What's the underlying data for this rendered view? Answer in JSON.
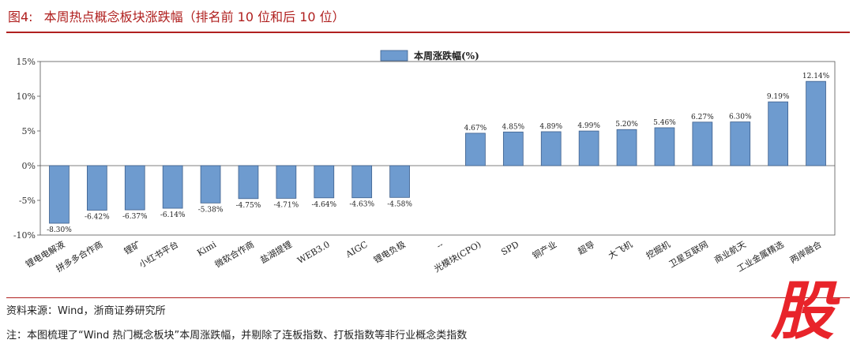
{
  "figure": {
    "number": "图4:",
    "title": "本周热点概念板块涨跌幅（排名前 10 位和后 10 位）"
  },
  "chart_data": {
    "type": "bar",
    "title": "",
    "xlabel": "",
    "ylabel": "",
    "legend": {
      "label": "本周涨跌幅(%)",
      "position": "top-center"
    },
    "ylim": [
      -10,
      15
    ],
    "yticks": [
      -10,
      -5,
      0,
      5,
      10,
      15
    ],
    "ytick_labels": [
      "-10%",
      "-5%",
      "0%",
      "5%",
      "10%",
      "15%"
    ],
    "categories": [
      "锂电电解液",
      "拼多多合作商",
      "锂矿",
      "小红书平台",
      "Kimi",
      "微软合作商",
      "盐湖提锂",
      "WEB3.0",
      "AIGC",
      "锂电负极",
      "--",
      "光模块(CPO)",
      "SPD",
      "铜产业",
      "超导",
      "大飞机",
      "挖掘机",
      "卫星互联网",
      "商业航天",
      "工业金属精选",
      "两岸融合"
    ],
    "values": [
      -8.3,
      -6.42,
      -6.37,
      -6.14,
      -5.38,
      -4.75,
      -4.71,
      -4.64,
      -4.63,
      -4.58,
      null,
      4.67,
      4.85,
      4.89,
      4.99,
      5.2,
      5.46,
      6.27,
      6.3,
      9.19,
      12.14
    ],
    "value_labels": [
      "-8.30%",
      "-6.42%",
      "-6.37%",
      "-6.14%",
      "-5.38%",
      "-4.75%",
      "-4.71%",
      "-4.64%",
      "-4.63%",
      "-4.58%",
      "",
      "4.67%",
      "4.85%",
      "4.89%",
      "4.99%",
      "5.20%",
      "5.46%",
      "6.27%",
      "6.30%",
      "9.19%",
      "12.14%"
    ],
    "bar_color": "#6e9bcf",
    "bar_edge_color": "#3d5f8c"
  },
  "footer": {
    "source": "资料来源：Wind，浙商证券研究所",
    "note": "注：本图梳理了“Wind 热门概念板块”本周涨跌幅，并剔除了连板指数、打板指数等非行业概念类指数"
  },
  "watermark": {
    "glyph": "股"
  }
}
